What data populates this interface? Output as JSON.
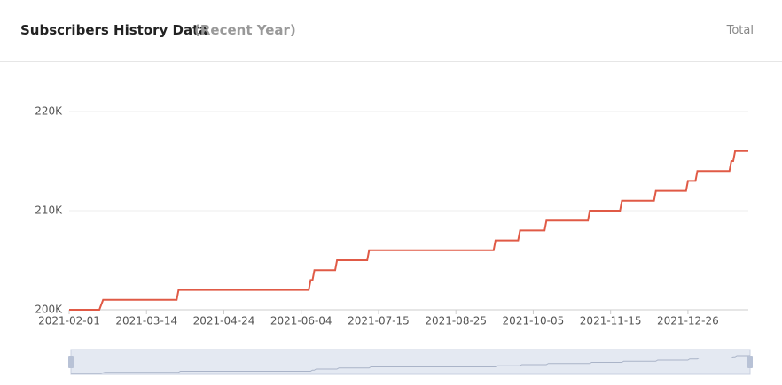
{
  "header": {
    "title": "Subscribers History Data",
    "subtitle": "(Recent Year)",
    "button": "Total"
  },
  "chart_data": {
    "type": "line",
    "color": "#e05a46",
    "grid": true,
    "x": [
      "2021-02-01",
      "2021-02-17",
      "2021-02-19",
      "2021-03-30",
      "2021-03-31",
      "2021-06-08",
      "2021-06-09",
      "2021-06-10",
      "2021-06-11",
      "2021-06-22",
      "2021-06-23",
      "2021-07-09",
      "2021-07-10",
      "2021-09-14",
      "2021-09-15",
      "2021-09-27",
      "2021-09-28",
      "2021-10-11",
      "2021-10-12",
      "2021-11-03",
      "2021-11-04",
      "2021-11-20",
      "2021-11-21",
      "2021-12-08",
      "2021-12-09",
      "2021-12-25",
      "2021-12-26",
      "2021-12-30",
      "2021-12-31",
      "2022-01-17",
      "2022-01-18",
      "2022-01-19",
      "2022-01-20",
      "2022-01-27"
    ],
    "values": [
      200000,
      200000,
      201000,
      201000,
      202000,
      202000,
      203000,
      203000,
      204000,
      204000,
      205000,
      205000,
      206000,
      206000,
      207000,
      207000,
      208000,
      208000,
      209000,
      209000,
      210000,
      210000,
      211000,
      211000,
      212000,
      212000,
      213000,
      213000,
      214000,
      214000,
      215000,
      215000,
      216000,
      216000
    ],
    "xlim": [
      "2021-02-01",
      "2022-01-27"
    ],
    "xticks": [
      "2021-02-01",
      "2021-03-14",
      "2021-04-24",
      "2021-06-04",
      "2021-07-15",
      "2021-08-25",
      "2021-10-05",
      "2021-11-15",
      "2021-12-26"
    ],
    "ylim": [
      200000,
      220000
    ],
    "yticks": [
      {
        "value": 200000,
        "label": "200K"
      },
      {
        "value": 210000,
        "label": "210K"
      },
      {
        "value": 220000,
        "label": "220K"
      }
    ]
  }
}
